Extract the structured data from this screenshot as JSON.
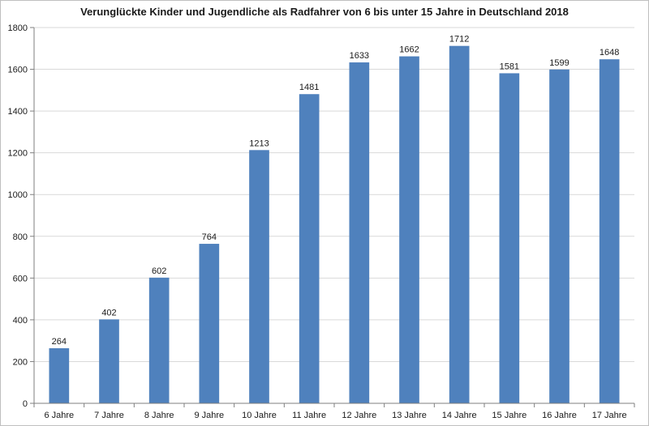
{
  "chart_data": {
    "type": "bar",
    "title": "Verunglückte Kinder und Jugendliche als Radfahrer von 6 bis unter 15 Jahre in Deutschland 2018",
    "xlabel": "",
    "ylabel": "",
    "categories": [
      "6 Jahre",
      "7 Jahre",
      "8 Jahre",
      "9 Jahre",
      "10 Jahre",
      "11 Jahre",
      "12 Jahre",
      "13 Jahre",
      "14 Jahre",
      "15 Jahre",
      "16 Jahre",
      "17 Jahre"
    ],
    "values": [
      264,
      402,
      602,
      764,
      1213,
      1481,
      1633,
      1662,
      1712,
      1581,
      1599,
      1648
    ],
    "ylim": [
      0,
      1800
    ],
    "yticks": [
      0,
      200,
      400,
      600,
      800,
      1000,
      1200,
      1400,
      1600,
      1800
    ],
    "grid": true,
    "legend": "none",
    "bar_color": "#4f81bd",
    "grid_color": "#d9d9d9"
  }
}
